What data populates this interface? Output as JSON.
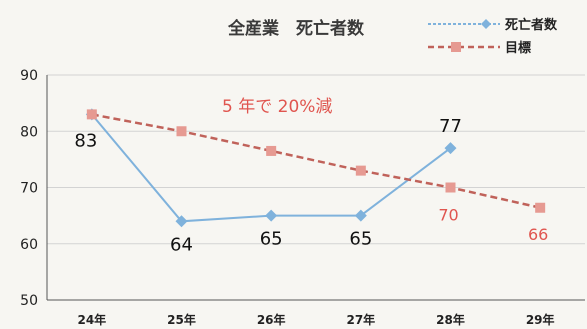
{
  "chart_data": {
    "type": "line",
    "title": "全産業　死亡者数",
    "categories": [
      "24年",
      "25年",
      "26年",
      "27年",
      "28年",
      "29年"
    ],
    "ylim": [
      50,
      90
    ],
    "yticks": [
      50,
      60,
      70,
      80,
      90
    ],
    "grid": true,
    "legend_position": "top-right",
    "annotation": "5 年で 20%減",
    "series": [
      {
        "name": "死亡者数",
        "color": "#7fb2dc",
        "marker": "diamond",
        "values": [
          83,
          64,
          65,
          65,
          77,
          null
        ],
        "labels": [
          "83",
          "64",
          "65",
          "65",
          "77",
          ""
        ]
      },
      {
        "name": "目標",
        "color": "#c0625a",
        "marker": "square",
        "dashed": true,
        "values": [
          83,
          80,
          76.5,
          73,
          70,
          66.4
        ],
        "labels": [
          "",
          "",
          "",
          "",
          "70",
          "66"
        ]
      }
    ]
  }
}
